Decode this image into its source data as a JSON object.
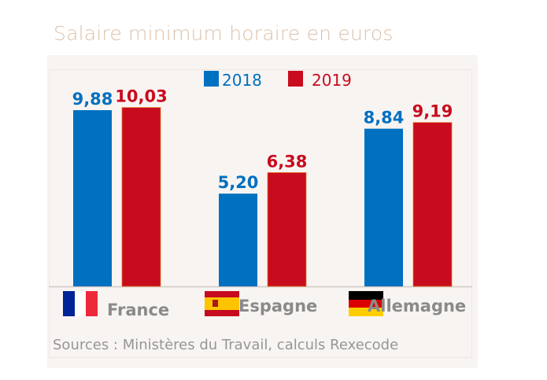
{
  "chart_data": {
    "type": "bar",
    "title": "Salaire minimum horaire en euros",
    "categories": [
      "France",
      "Espagne",
      "Allemagne"
    ],
    "series": [
      {
        "name": "2018",
        "color": "#0070c0",
        "values": [
          9.88,
          5.2,
          8.84
        ],
        "labels": [
          "9,88",
          "5,20",
          "8,84"
        ]
      },
      {
        "name": "2019",
        "color": "#c80c1e",
        "values": [
          10.03,
          6.38,
          9.19
        ],
        "labels": [
          "10,03",
          "6,38",
          "9,19"
        ]
      }
    ],
    "xlabel": "",
    "ylabel": "",
    "ylim": [
      0,
      12
    ],
    "grid": false,
    "legend": "top-center",
    "source": "Sources : Ministères du Travail, calculs Rexecode"
  }
}
